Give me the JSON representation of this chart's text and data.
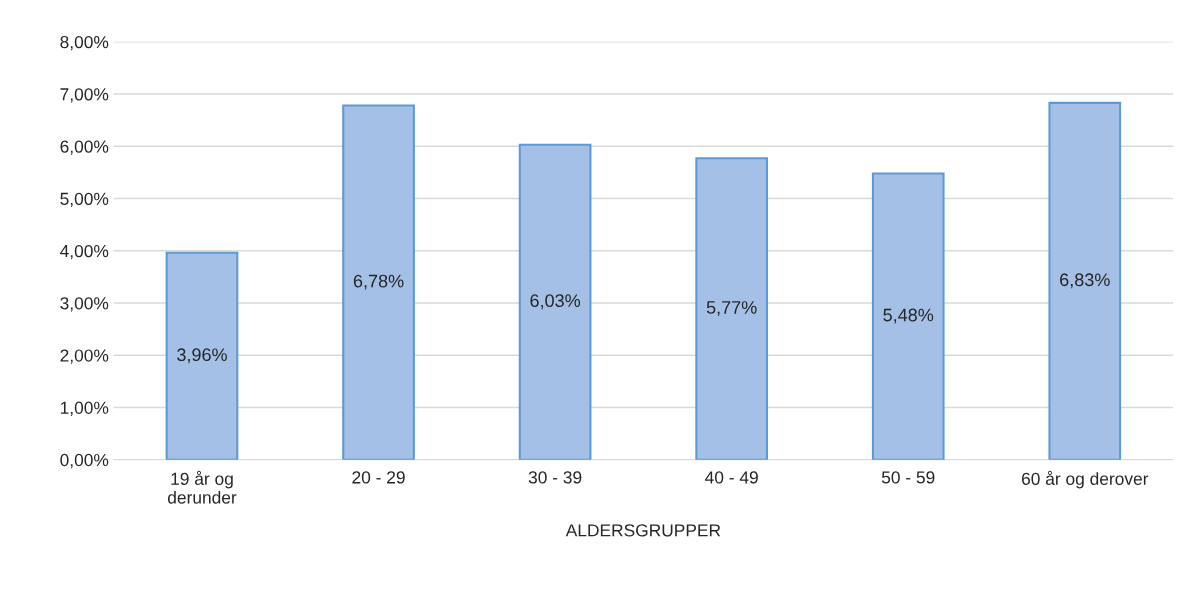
{
  "chart_data": {
    "type": "bar",
    "xlabel": "ALDERSGRUPPER",
    "categories": [
      "19 år og\nderunder",
      "20 - 29",
      "30 - 39",
      "40 - 49",
      "50 - 59",
      "60 år og derover"
    ],
    "values": [
      3.96,
      6.78,
      6.03,
      5.77,
      5.48,
      6.83
    ],
    "value_labels": [
      "3,96%",
      "6,78%",
      "6,03%",
      "5,77%",
      "5,48%",
      "6,83%"
    ],
    "color": "#a4c0e6",
    "ylim": [
      0,
      8
    ],
    "yticks": [
      {
        "value": 0,
        "label": "0,00%"
      },
      {
        "value": 1,
        "label": "1,00%"
      },
      {
        "value": 2,
        "label": "2,00%"
      },
      {
        "value": 3,
        "label": "3,00%"
      },
      {
        "value": 4,
        "label": "4,00%"
      },
      {
        "value": 5,
        "label": "5,00%"
      },
      {
        "value": 6,
        "label": "6,00%"
      },
      {
        "value": 7,
        "label": "7,00%"
      },
      {
        "value": 8,
        "label": "8,00%"
      }
    ],
    "grid": "y",
    "legend": false
  }
}
